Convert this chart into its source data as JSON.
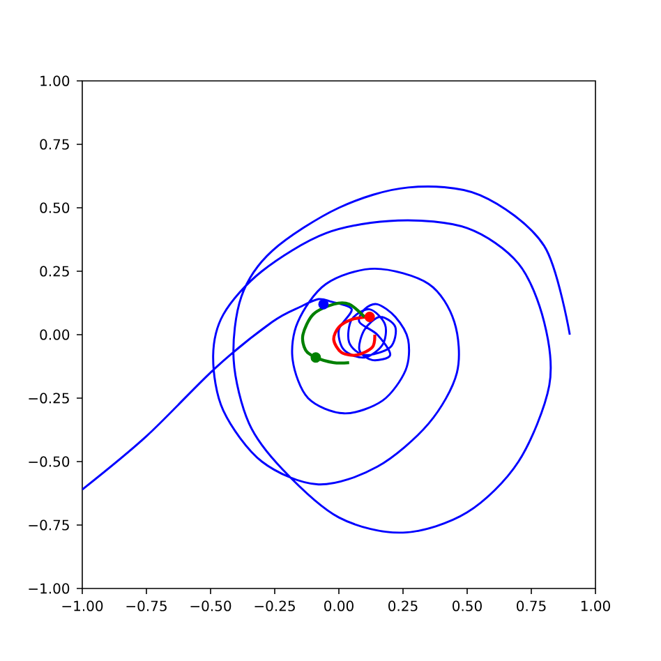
{
  "chart_data": {
    "type": "line",
    "xlim": [
      -1,
      1
    ],
    "ylim": [
      -1,
      1
    ],
    "xticks": [
      {
        "value": -1,
        "label": "−1.00"
      },
      {
        "value": -0.75,
        "label": "−0.75"
      },
      {
        "value": -0.5,
        "label": "−0.50"
      },
      {
        "value": -0.25,
        "label": "−0.25"
      },
      {
        "value": 0,
        "label": "0.00"
      },
      {
        "value": 0.25,
        "label": "0.25"
      },
      {
        "value": 0.5,
        "label": "0.50"
      },
      {
        "value": 0.75,
        "label": "0.75"
      },
      {
        "value": 1,
        "label": "1.00"
      }
    ],
    "yticks": [
      {
        "value": -1,
        "label": "−1.00"
      },
      {
        "value": -0.75,
        "label": "−0.75"
      },
      {
        "value": -0.5,
        "label": "−0.50"
      },
      {
        "value": -0.25,
        "label": "−0.25"
      },
      {
        "value": 0,
        "label": "0.00"
      },
      {
        "value": 0.25,
        "label": "0.25"
      },
      {
        "value": 0.5,
        "label": "0.50"
      },
      {
        "value": 0.75,
        "label": "0.75"
      },
      {
        "value": 1,
        "label": "1.00"
      }
    ],
    "grid": false,
    "series": [
      {
        "color": "#0000ff",
        "x": [
          -1.0,
          -0.75,
          -0.48,
          -0.26,
          -0.15,
          -0.08,
          -0.03,
          0.05,
          0.0,
          0.02,
          0.1,
          0.17,
          0.18,
          0.12,
          0.05,
          0.04,
          0.1,
          0.2,
          0.22,
          0.16,
          0.1,
          0.08,
          0.13,
          0.2,
          0.15,
          0.08,
          0.1,
          0.15,
          0.22,
          0.27,
          0.26,
          0.17,
          0.02,
          -0.12,
          -0.18,
          -0.16,
          -0.05,
          0.14,
          0.35,
          0.45,
          0.46,
          0.35,
          0.15,
          -0.08,
          -0.3,
          -0.45,
          -0.49,
          -0.45,
          -0.3,
          -0.05,
          0.23,
          0.5,
          0.7,
          0.8,
          0.82,
          0.7,
          0.5,
          0.25,
          0.0,
          -0.22,
          -0.35,
          -0.41,
          -0.38,
          -0.26,
          0.0,
          0.27,
          0.55,
          0.8,
          0.9
        ],
        "values": [
          -0.61,
          -0.4,
          -0.13,
          0.05,
          0.11,
          0.14,
          0.13,
          0.1,
          0.02,
          -0.06,
          -0.09,
          -0.04,
          0.04,
          0.1,
          0.06,
          -0.03,
          -0.08,
          -0.05,
          0.03,
          0.07,
          0.02,
          -0.06,
          -0.1,
          -0.08,
          0.0,
          0.05,
          0.1,
          0.12,
          0.07,
          -0.02,
          -0.14,
          -0.26,
          -0.31,
          -0.25,
          -0.1,
          0.05,
          0.2,
          0.26,
          0.2,
          0.05,
          -0.15,
          -0.35,
          -0.52,
          -0.59,
          -0.5,
          -0.3,
          -0.09,
          0.08,
          0.25,
          0.4,
          0.45,
          0.42,
          0.28,
          0.05,
          -0.2,
          -0.5,
          -0.7,
          -0.78,
          -0.72,
          -0.53,
          -0.35,
          -0.1,
          0.15,
          0.33,
          0.5,
          0.58,
          0.55,
          0.35,
          0.0
        ]
      },
      {
        "color": "#ff0000",
        "x": [
          0.11,
          0.05,
          0.0,
          -0.02,
          0.01,
          0.07,
          0.13,
          0.14
        ],
        "values": [
          0.07,
          0.06,
          0.03,
          -0.02,
          -0.07,
          -0.08,
          -0.05,
          0.0
        ]
      },
      {
        "color": "#008000",
        "x": [
          0.1,
          0.04,
          -0.02,
          -0.1,
          -0.14,
          -0.13,
          -0.09,
          -0.02,
          0.04
        ],
        "values": [
          0.07,
          0.12,
          0.12,
          0.08,
          0.0,
          -0.06,
          -0.09,
          -0.11,
          -0.11
        ]
      },
      {
        "type": "scatter",
        "marker": "circle",
        "color": "#ff0000",
        "x": [
          0.12
        ],
        "values": [
          0.07
        ]
      },
      {
        "type": "scatter",
        "marker": "circle",
        "color": "#008000",
        "x": [
          -0.09
        ],
        "values": [
          -0.09
        ]
      },
      {
        "type": "scatter",
        "marker": "circle",
        "color": "#0000ff",
        "x": [
          -0.06
        ],
        "values": [
          0.12
        ]
      }
    ]
  }
}
